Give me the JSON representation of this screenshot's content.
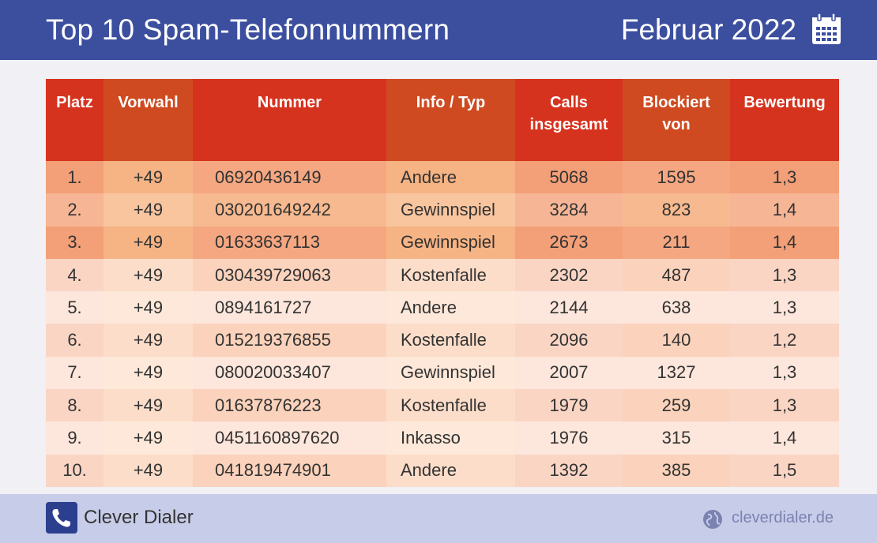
{
  "header": {
    "title": "Top 10 Spam-Telefonnummern",
    "month": "Februar 2022",
    "calendar_icon": "calendar-icon"
  },
  "chart_data": {
    "type": "table",
    "columns": [
      "Platz",
      "Vorwahl",
      "Nummer",
      "Info / Typ",
      "Calls insgesamt",
      "Blockiert von",
      "Bewertung"
    ],
    "header_lines": [
      [
        "Platz"
      ],
      [
        "Vorwahl"
      ],
      [
        "Nummer"
      ],
      [
        "Info / Typ"
      ],
      [
        "Calls",
        "insgesamt"
      ],
      [
        "Blockiert",
        "von"
      ],
      [
        "Bewertung"
      ]
    ],
    "rows": [
      [
        "1.",
        "+49",
        "06920436149",
        "Andere",
        "5068",
        "1595",
        "1,3"
      ],
      [
        "2.",
        "+49",
        "030201649242",
        "Gewinnspiel",
        "3284",
        "823",
        "1,4"
      ],
      [
        "3.",
        "+49",
        "01633637113",
        "Gewinnspiel",
        "2673",
        "211",
        "1,4"
      ],
      [
        "4.",
        "+49",
        "030439729063",
        "Kostenfalle",
        "2302",
        "487",
        "1,3"
      ],
      [
        "5.",
        "+49",
        "0894161727",
        "Andere",
        "2144",
        "638",
        "1,3"
      ],
      [
        "6.",
        "+49",
        "015219376855",
        "Kostenfalle",
        "2096",
        "140",
        "1,2"
      ],
      [
        "7.",
        "+49",
        "080020033407",
        "Gewinnspiel",
        "2007",
        "1327",
        "1,3"
      ],
      [
        "8.",
        "+49",
        "01637876223",
        "Kostenfalle",
        "1979",
        "259",
        "1,3"
      ],
      [
        "9.",
        "+49",
        "0451160897620",
        "Inkasso",
        "1976",
        "315",
        "1,4"
      ],
      [
        "10.",
        "+49",
        "041819474901",
        "Andere",
        "1392",
        "385",
        "1,5"
      ]
    ],
    "row_colors": [
      [
        "#f39f77",
        "#f6b383",
        "#f5a781",
        "#f6b383",
        "#f39f77",
        "#f5a781",
        "#f39f77"
      ],
      [
        "#f6b696",
        "#f8c59f",
        "#f7b98f",
        "#f8c59f",
        "#f6b696",
        "#f7b98f",
        "#f6b696"
      ],
      [
        "#f39f77",
        "#f6b383",
        "#f5a781",
        "#f6b383",
        "#f39f77",
        "#f5a781",
        "#f39f77"
      ],
      [
        "#fad5c4",
        "#fcddc9",
        "#fbd2bb",
        "#fcddc9",
        "#fad5c4",
        "#fbd2bb",
        "#fad5c4"
      ],
      [
        "#fde6db",
        "#fde8d9",
        "#fde6db",
        "#fde8d9",
        "#fde6db",
        "#fde6db",
        "#fde6db"
      ],
      [
        "#fad5c4",
        "#fcddc9",
        "#fbd2bb",
        "#fcddc9",
        "#fad5c4",
        "#fbd2bb",
        "#fad5c4"
      ],
      [
        "#fde6db",
        "#fde8d9",
        "#fde6db",
        "#fde8d9",
        "#fde6db",
        "#fde6db",
        "#fde6db"
      ],
      [
        "#fad5c4",
        "#fcddc9",
        "#fbd2bb",
        "#fcddc9",
        "#fad5c4",
        "#fbd2bb",
        "#fad5c4"
      ],
      [
        "#fde6db",
        "#fde8d9",
        "#fde6db",
        "#fde8d9",
        "#fde6db",
        "#fde6db",
        "#fde6db"
      ],
      [
        "#fad5c4",
        "#fcddc9",
        "#fbd2bb",
        "#fcddc9",
        "#fad5c4",
        "#fbd2bb",
        "#fad5c4"
      ]
    ]
  },
  "footer": {
    "brand": "Clever Dialer",
    "brand_icon": "phone-icon",
    "url": "cleverdialer.de",
    "url_icon": "globe-icon"
  },
  "colors": {
    "header_bg": "#3c4f9f",
    "table_header": "#d6331e",
    "footer_bg": "#c7cde9"
  }
}
